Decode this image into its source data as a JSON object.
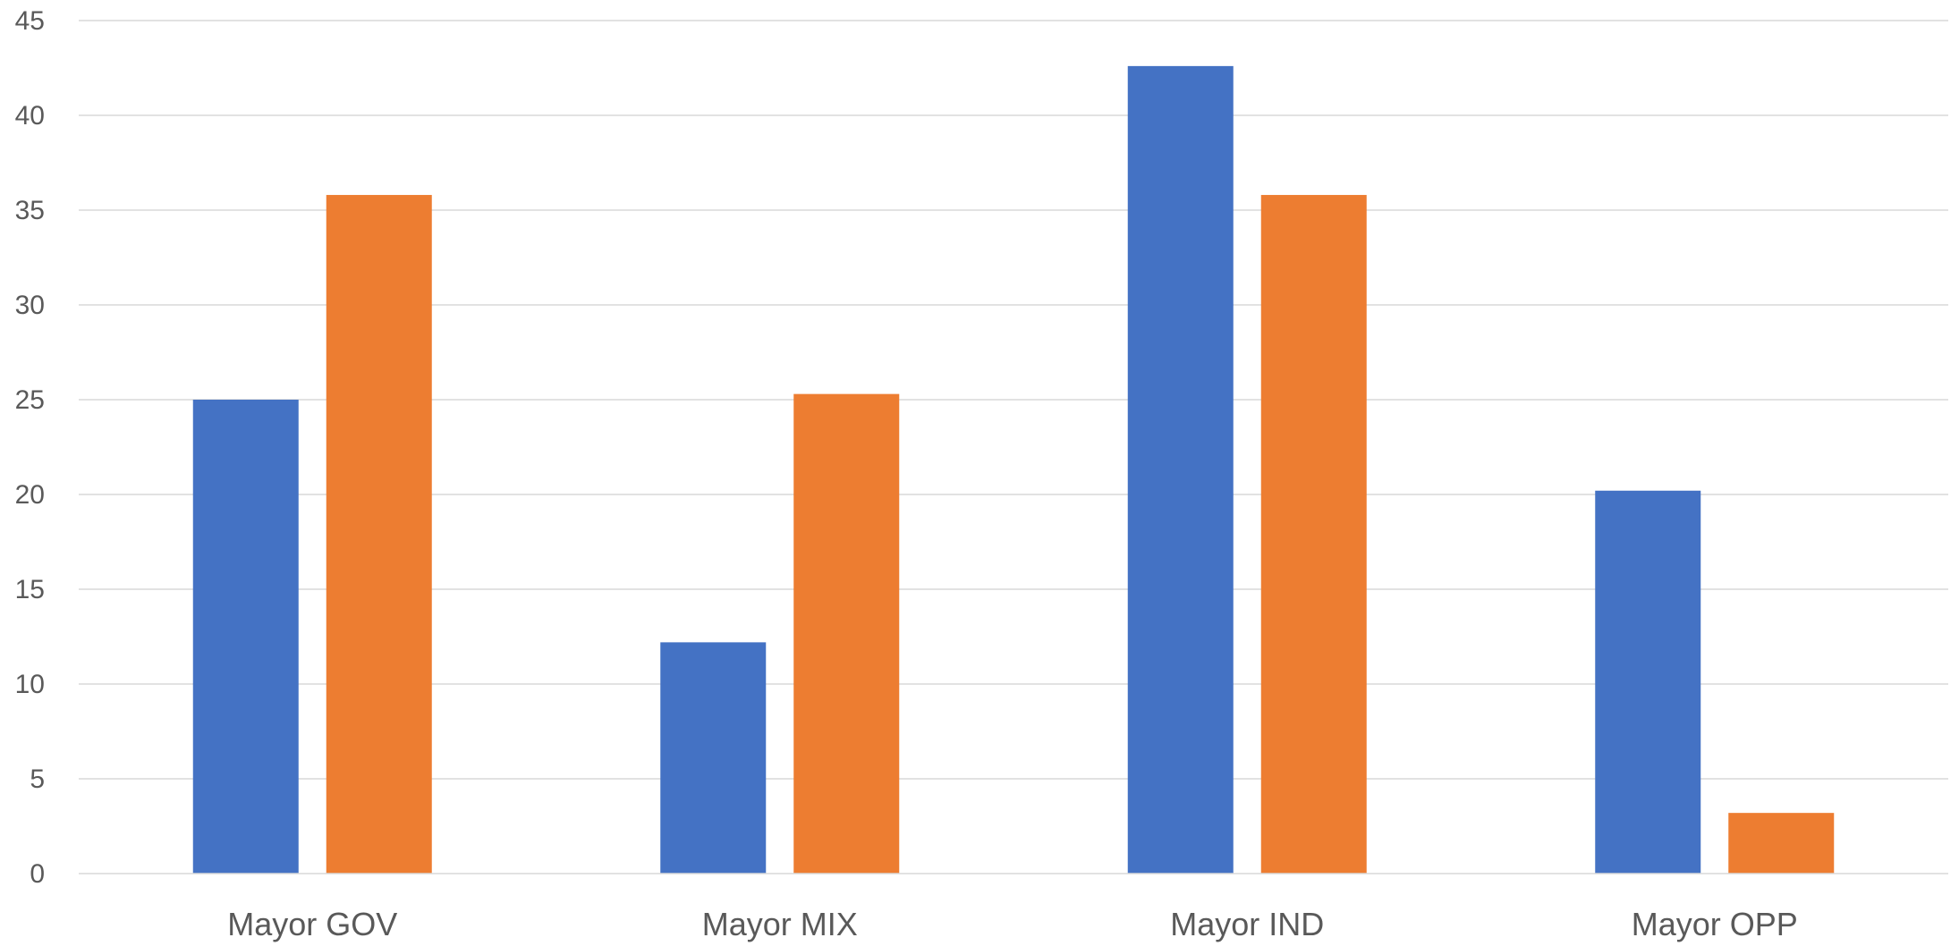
{
  "chart_data": {
    "type": "bar",
    "title": "",
    "xlabel": "",
    "ylabel": "",
    "ylim": [
      0,
      45
    ],
    "yticks": [
      0,
      5,
      10,
      15,
      20,
      25,
      30,
      35,
      40,
      45
    ],
    "grid": true,
    "legend": "none",
    "categories": [
      "Mayor GOV",
      "Mayor MIX",
      "Mayor IND",
      "Mayor OPP"
    ],
    "series": [
      {
        "values": [
          25,
          12.2,
          42.6,
          20.2
        ],
        "color": "#4472c4"
      },
      {
        "values": [
          35.8,
          25.3,
          35.8,
          3.2
        ],
        "color": "#ed7d31"
      }
    ]
  }
}
